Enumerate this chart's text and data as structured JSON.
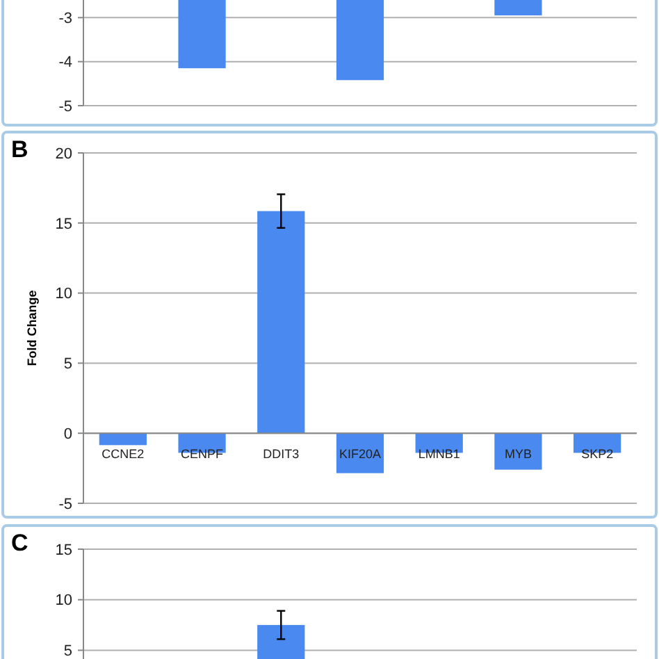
{
  "chart_data": [
    {
      "type": "bar",
      "categories": [
        null,
        null,
        null,
        null,
        null,
        null,
        null
      ],
      "values": [
        null,
        -4.15,
        null,
        -4.42,
        null,
        -2.95,
        null
      ],
      "color": "#4a8af0",
      "ylim": [
        -5,
        -2.6
      ],
      "yticks": [
        -5,
        -4,
        -3
      ],
      "grid": "y",
      "tick_labels": "y"
    },
    {
      "type": "bar",
      "title": "B",
      "ylabel": "Fold Change",
      "categories": [
        "CCNE2",
        "CENPF",
        "DDIT3",
        "KIF20A",
        "LMNB1",
        "MYB",
        "SKP2"
      ],
      "values": [
        -0.85,
        -1.4,
        15.85,
        -2.85,
        -1.4,
        -2.6,
        -1.4
      ],
      "errors": [
        null,
        null,
        1.2,
        null,
        null,
        null,
        null
      ],
      "color": "#4a8af0",
      "ylim": [
        -5,
        20
      ],
      "yticks": [
        -5,
        0,
        5,
        10,
        15,
        20
      ],
      "grid": "y"
    },
    {
      "type": "bar",
      "title": "C",
      "categories": [
        null,
        null,
        null,
        null,
        null,
        null,
        null
      ],
      "values": [
        null,
        null,
        7.5,
        null,
        null,
        null,
        null
      ],
      "errors": [
        null,
        null,
        1.4,
        null,
        null,
        null,
        null
      ],
      "color": "#4a8af0",
      "ylim": [
        4,
        15
      ],
      "yticks": [
        5,
        10,
        15
      ],
      "grid": "y",
      "tick_labels": "y"
    }
  ]
}
